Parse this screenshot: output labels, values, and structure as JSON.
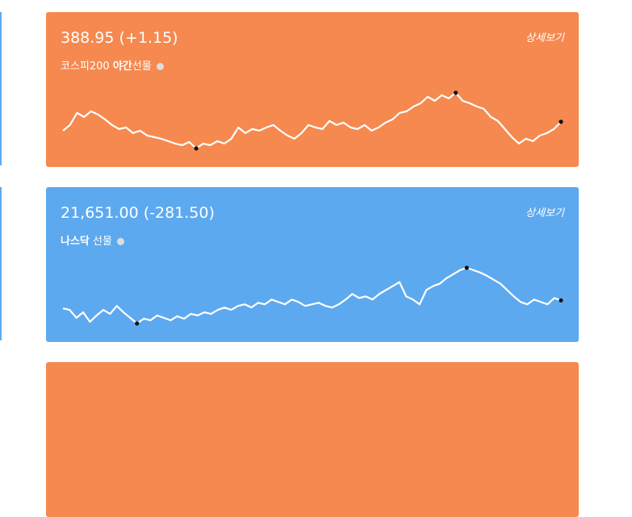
{
  "cards": [
    {
      "price": "388.95 (+1.15)",
      "name_parts": [
        {
          "text": "코스피200 "
        },
        {
          "text": "야간",
          "bold": true
        },
        {
          "text": "선물"
        }
      ],
      "link": "상세보기",
      "color": "#f5894f",
      "sparkline": [
        388.4,
        388.75,
        389.5,
        389.25,
        389.6,
        389.4,
        389.1,
        388.75,
        388.5,
        388.6,
        388.25,
        388.4,
        388.1,
        388.0,
        387.9,
        387.75,
        387.6,
        387.5,
        387.7,
        387.3,
        387.6,
        387.5,
        387.75,
        387.6,
        387.9,
        388.6,
        388.25,
        388.5,
        388.4,
        388.6,
        388.75,
        388.4,
        388.1,
        387.9,
        388.25,
        388.75,
        388.6,
        388.5,
        389.0,
        388.75,
        388.9,
        388.6,
        388.5,
        388.75,
        388.4,
        388.6,
        388.9,
        389.1,
        389.5,
        389.6,
        389.9,
        390.1,
        390.5,
        390.25,
        390.6,
        390.4,
        390.75,
        390.25,
        390.1,
        389.9,
        389.75,
        389.25,
        389.0,
        388.5,
        388.0,
        387.6,
        387.9,
        387.75,
        388.1,
        388.25,
        388.5,
        388.95
      ]
    },
    {
      "price": "21,651.00 (-281.50)",
      "name_parts": [
        {
          "text": "나스닥",
          "bold": true
        },
        {
          "text": " 선물"
        }
      ],
      "link": "상세보기",
      "color": "#5da9f0",
      "sparkline": [
        21551,
        21531,
        21431,
        21501,
        21381,
        21461,
        21531,
        21481,
        21581,
        21501,
        21431,
        21361,
        21421,
        21401,
        21461,
        21431,
        21401,
        21451,
        21421,
        21481,
        21461,
        21501,
        21481,
        21531,
        21561,
        21531,
        21581,
        21601,
        21561,
        21621,
        21601,
        21661,
        21631,
        21601,
        21661,
        21631,
        21581,
        21601,
        21621,
        21581,
        21561,
        21601,
        21661,
        21731,
        21681,
        21701,
        21661,
        21731,
        21781,
        21831,
        21881,
        21701,
        21661,
        21601,
        21781,
        21831,
        21861,
        21931,
        21981,
        22031,
        22061,
        22031,
        22001,
        21961,
        21911,
        21861,
        21781,
        21701,
        21631,
        21601,
        21661,
        21631,
        21601,
        21681,
        21651
      ]
    }
  ]
}
